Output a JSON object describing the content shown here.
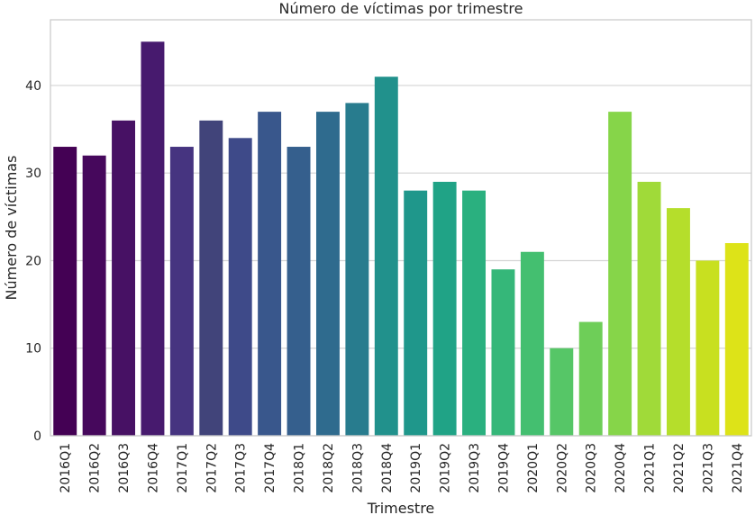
{
  "chart_data": {
    "type": "bar",
    "title": "Número de víctimas por trimestre",
    "xlabel": "Trimestre",
    "ylabel": "Número de víctimas",
    "ylim": [
      0,
      47.5
    ],
    "yticks": [
      0,
      10,
      20,
      30,
      40
    ],
    "grid": "horizontal",
    "legend": "none",
    "categories": [
      "2016Q1",
      "2016Q2",
      "2016Q3",
      "2016Q4",
      "2017Q1",
      "2017Q2",
      "2017Q3",
      "2017Q4",
      "2018Q1",
      "2018Q2",
      "2018Q3",
      "2018Q4",
      "2019Q1",
      "2019Q2",
      "2019Q3",
      "2019Q4",
      "2020Q1",
      "2020Q2",
      "2020Q3",
      "2020Q4",
      "2021Q1",
      "2021Q2",
      "2021Q3",
      "2021Q4"
    ],
    "values": [
      33,
      32,
      36,
      45,
      33,
      36,
      34,
      37,
      33,
      37,
      38,
      41,
      28,
      29,
      28,
      19,
      21,
      10,
      13,
      37,
      29,
      26,
      20,
      22
    ],
    "colors": [
      "#440154",
      "#46085c",
      "#471164",
      "#471a6e",
      "#463480",
      "#41447a",
      "#3e4a89",
      "#39578c",
      "#355f8d",
      "#2f6b8e",
      "#287c8e",
      "#21918c",
      "#1f978b",
      "#20a386",
      "#2ab07f",
      "#35b779",
      "#44bf70",
      "#56c667",
      "#6ece58",
      "#86d549",
      "#a0da39",
      "#b5de2b",
      "#c8e020",
      "#dde318"
    ]
  }
}
